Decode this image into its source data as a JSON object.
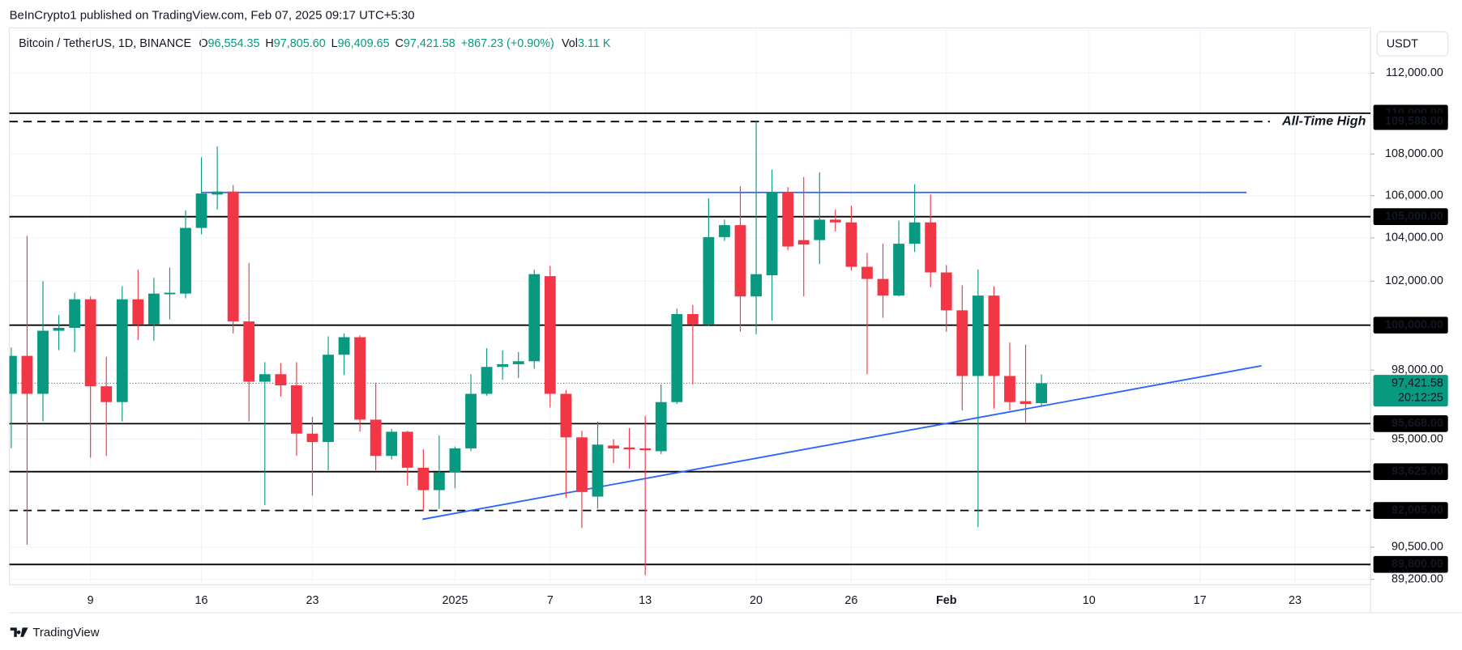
{
  "header": {
    "published": "BeInCrypto1 published on TradingView.com, Feb 07, 2025 09:17 UTC+5:30",
    "logo": "TradingView"
  },
  "chart_data": {
    "type": "candlestick",
    "legend": {
      "symbol": "Bitcoin / TetherUS, 1D, BINANCE",
      "fields": [
        {
          "key": "O",
          "value": "96,554.35"
        },
        {
          "key": "H",
          "value": "97,805.60"
        },
        {
          "key": "L",
          "value": "96,409.65"
        },
        {
          "key": "C",
          "value": "97,421.58"
        }
      ],
      "change": "+867.23 (+0.90%)",
      "volume_key": "Vol",
      "volume": "3.11 K"
    },
    "currency": "USDT",
    "up_color": "#089981",
    "down_color": "#f23645",
    "log_scale": true,
    "grid": true,
    "categories": [
      null,
      null,
      null,
      null,
      null,
      "9",
      null,
      null,
      null,
      null,
      null,
      null,
      "16",
      null,
      null,
      null,
      null,
      null,
      null,
      "23",
      null,
      null,
      null,
      null,
      null,
      null,
      null,
      null,
      "2025",
      null,
      null,
      null,
      null,
      null,
      "7",
      null,
      null,
      null,
      null,
      null,
      "13",
      null,
      null,
      null,
      null,
      null,
      null,
      "20",
      null,
      null,
      null,
      null,
      null,
      "26",
      null,
      null,
      null,
      null,
      null,
      "Feb",
      null,
      null,
      null,
      null,
      null,
      null,
      null,
      null,
      "10",
      null,
      null,
      null,
      null,
      null,
      null,
      "17",
      null,
      null,
      null,
      null,
      null,
      "23",
      null,
      null,
      null,
      null
    ],
    "open": [
      96960,
      98630,
      96960,
      99750,
      99880,
      101170,
      97290,
      96600,
      101170,
      100040,
      101400,
      101430,
      104470,
      106050,
      106190,
      100170,
      97490,
      97820,
      97330,
      95240,
      94880,
      98680,
      99460,
      95840,
      94290,
      95320,
      93790,
      92850,
      93590,
      94610,
      96960,
      98140,
      98260,
      98390,
      102230,
      96960,
      95080,
      92580,
      94730,
      94650,
      94610,
      94490,
      96600,
      100500,
      100040,
      104040,
      104600,
      101300,
      102270,
      106160,
      103900,
      103900,
      104860,
      104730,
      102660,
      102100,
      101340,
      103730,
      104730,
      102400,
      100670,
      97740,
      101340,
      97740,
      96640,
      96554.35,
      null,
      null,
      null,
      null,
      null,
      null,
      null,
      null,
      null,
      null,
      null,
      null,
      null,
      null,
      null,
      null,
      null,
      null,
      null,
      null
    ],
    "high": [
      99000,
      104100,
      102000,
      100460,
      101470,
      101300,
      98590,
      101770,
      102530,
      102150,
      102620,
      105300,
      107840,
      108370,
      106500,
      102830,
      98350,
      98310,
      98350,
      95960,
      99500,
      99630,
      99540,
      97450,
      95440,
      95360,
      94570,
      95160,
      94690,
      97820,
      98970,
      98880,
      98800,
      102530,
      102700,
      97130,
      95360,
      95760,
      95000,
      95480,
      96000,
      97370,
      100750,
      100920,
      105870,
      104860,
      106450,
      109588,
      107250,
      106400,
      106890,
      107110,
      105340,
      105520,
      103300,
      103730,
      104820,
      106540,
      106050,
      102740,
      101810,
      102530,
      101770,
      99220,
      99130,
      97805.6,
      null,
      null,
      null,
      null,
      null,
      null,
      null,
      null,
      null,
      null,
      null,
      null,
      null,
      null,
      null,
      null,
      null,
      null,
      null,
      null
    ],
    "low": [
      94610,
      90600,
      95770,
      98880,
      98800,
      94210,
      94290,
      95760,
      99340,
      99300,
      100250,
      101220,
      104170,
      105340,
      99630,
      95760,
      92230,
      96840,
      94290,
      92620,
      93680,
      97780,
      95320,
      93680,
      94140,
      93040,
      91970,
      92080,
      92930,
      94490,
      96880,
      97570,
      97650,
      98060,
      96360,
      92540,
      91280,
      92080,
      93980,
      93750,
      89370,
      94370,
      96520,
      97370,
      99960,
      103860,
      99710,
      99590,
      100210,
      103430,
      101300,
      102790,
      104300,
      102490,
      97820,
      100330,
      101300,
      103350,
      101720,
      99710,
      96240,
      91320,
      96320,
      96240,
      95720,
      96409.65,
      null,
      null,
      null,
      null,
      null,
      null,
      null,
      null,
      null,
      null,
      null,
      null,
      null,
      null,
      null,
      null,
      null,
      null,
      null,
      null
    ],
    "close": [
      98630,
      96960,
      99750,
      99880,
      101170,
      97290,
      96600,
      101170,
      100040,
      101430,
      101470,
      104470,
      106100,
      106190,
      100170,
      97490,
      97820,
      97330,
      95240,
      94880,
      98680,
      99460,
      95840,
      94290,
      95320,
      93790,
      92850,
      93590,
      94610,
      96960,
      98140,
      98260,
      98390,
      102320,
      96960,
      95080,
      92770,
      94770,
      94610,
      94570,
      94530,
      96600,
      100500,
      100040,
      104040,
      104600,
      101300,
      102320,
      106160,
      103600,
      103690,
      104860,
      104730,
      102660,
      102100,
      101340,
      103730,
      104730,
      102400,
      100670,
      97740,
      101340,
      97740,
      96600,
      96520,
      97421.58,
      null,
      null,
      null,
      null,
      null,
      null,
      null,
      null,
      null,
      null,
      null,
      null,
      null,
      null,
      null,
      null,
      null,
      null,
      null,
      null
    ],
    "ylim": [
      88980,
      114300
    ],
    "yticks": [
      {
        "value": 112000,
        "label": "112,000.00"
      },
      {
        "value": 108000,
        "label": "108,000.00"
      },
      {
        "value": 106000,
        "label": "106,000.00"
      },
      {
        "value": 104000,
        "label": "104,000.00"
      },
      {
        "value": 102000,
        "label": "102,000.00"
      },
      {
        "value": 98000,
        "label": "98,000.00"
      },
      {
        "value": 95000,
        "label": "95,000.00"
      },
      {
        "value": 90500,
        "label": "90,500.00"
      },
      {
        "value": 89200,
        "label": "89,200.00"
      }
    ],
    "levels": [
      {
        "value": 110000,
        "label": "110,000.00",
        "style": "solid"
      },
      {
        "value": 109588,
        "label": "109,588.00",
        "style": "dashed",
        "annotation": "All-Time High"
      },
      {
        "value": 105000,
        "label": "105,000.00",
        "style": "solid"
      },
      {
        "value": 100000,
        "label": "100,000.00",
        "style": "solid"
      },
      {
        "value": 95668,
        "label": "95,668.00",
        "style": "solid"
      },
      {
        "value": 93625,
        "label": "93,625.00",
        "style": "solid"
      },
      {
        "value": 92005,
        "label": "92,005.00",
        "style": "dashed"
      },
      {
        "value": 89800,
        "label": "89,800.00",
        "style": "solid"
      }
    ],
    "trendlines": [
      {
        "color": "#2962ff",
        "x": [
          12,
          77.94
        ],
        "y": [
          106150,
          106150
        ]
      },
      {
        "color": "#2962ff",
        "x": [
          25.94,
          78.88
        ],
        "y": [
          91640,
          98190
        ]
      }
    ],
    "last_price": {
      "value": 97421.58,
      "label": "97,421.58",
      "countdown": "20:12:25"
    }
  }
}
